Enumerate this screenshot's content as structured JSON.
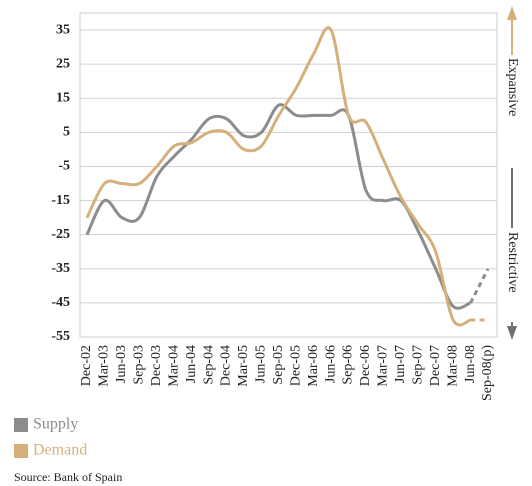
{
  "chart_data": {
    "type": "line",
    "categories": [
      "Dec-02",
      "Mar-03",
      "Jun-03",
      "Sep-03",
      "Dec-03",
      "Mar-04",
      "Jun-04",
      "Sep-04",
      "Dec-04",
      "Mar-05",
      "Jun-05",
      "Sep-05",
      "Dec-05",
      "Mar-06",
      "Jun-06",
      "Sep-06",
      "Dec-06",
      "Mar-07",
      "Jun-07",
      "Sep-07",
      "Dec-07",
      "Mar-08",
      "Jun-08",
      "Sep-08(p)"
    ],
    "series": [
      {
        "name": "Supply",
        "color": "#8c8c8c",
        "values": [
          -25,
          -15,
          -20,
          -20,
          -8,
          -2,
          3,
          9,
          9,
          4,
          5,
          13,
          10,
          10,
          10,
          10,
          -12,
          -15,
          -15,
          -24,
          -35,
          -46,
          -45,
          -35
        ]
      },
      {
        "name": "Demand",
        "color": "#d6b07a",
        "values": [
          -20,
          -10,
          -10,
          -10,
          -5,
          1,
          2,
          5,
          5,
          0,
          1,
          10,
          18,
          28,
          35,
          10,
          8,
          -3,
          -14,
          -22,
          -30,
          -50,
          -50,
          -50
        ]
      }
    ],
    "projection_start": "Jun-08",
    "ylim": [
      -55,
      40
    ],
    "yticks": [
      35,
      25,
      15,
      5,
      -5,
      -15,
      -25,
      -35,
      -45,
      -55
    ],
    "grid": true,
    "upper_label": "Expansive",
    "lower_label": "Restrictive",
    "source": "Source: Bank of Spain"
  }
}
